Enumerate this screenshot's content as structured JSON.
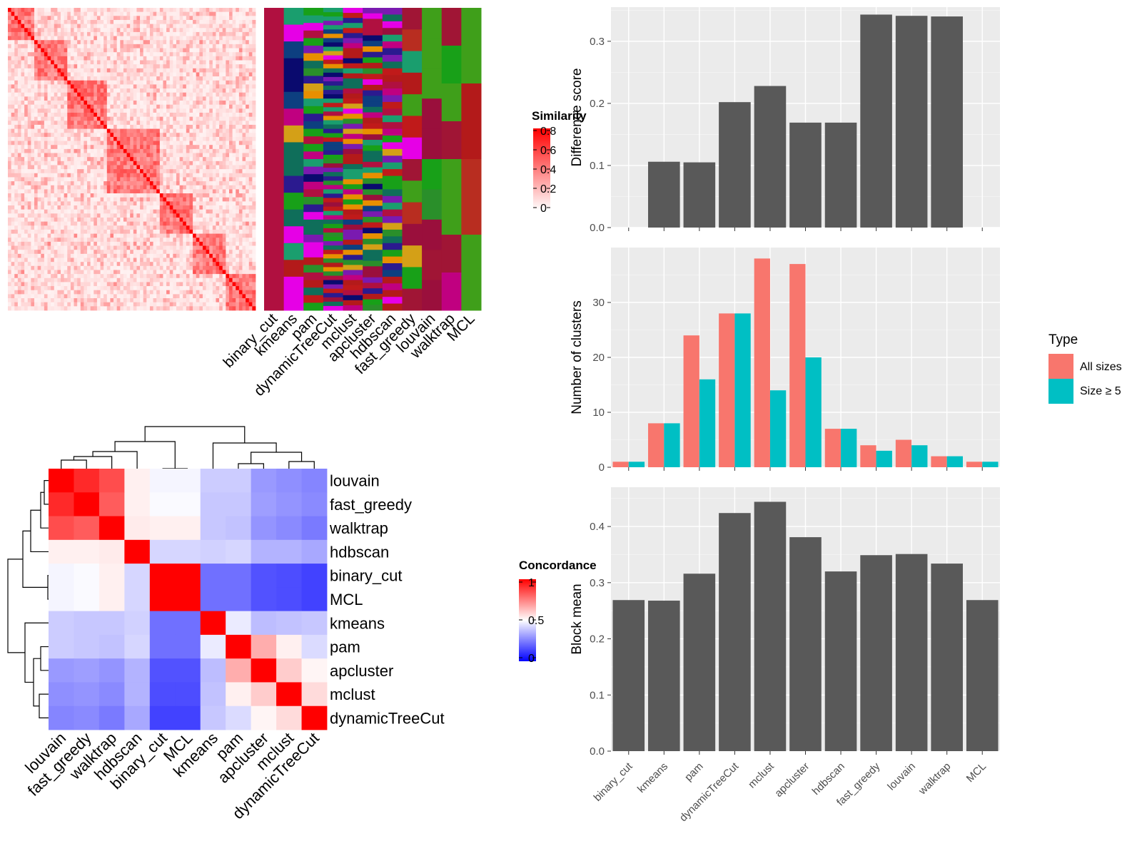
{
  "methods_order": [
    "binary_cut",
    "kmeans",
    "pam",
    "dynamicTreeCut",
    "mclust",
    "apcluster",
    "hdbscan",
    "fast_greedy",
    "louvain",
    "walktrap",
    "MCL"
  ],
  "chart_data": [
    {
      "id": "similarity-heatmap",
      "type": "heatmap",
      "title": "",
      "legend_title": "Similarity",
      "legend_ticks": [
        "0.8",
        "0.6",
        "0.4",
        "0.2",
        "0"
      ],
      "colors": {
        "low": "#ffffff",
        "high": "#ff0000"
      },
      "note": "sorted similarity matrix of terms with method cluster annotation bars",
      "annotation_columns": [
        "binary_cut",
        "kmeans",
        "pam",
        "dynamicTreeCut",
        "mclust",
        "apcluster",
        "hdbscan",
        "fast_greedy",
        "louvain",
        "walktrap",
        "MCL"
      ]
    },
    {
      "id": "concordance-heatmap",
      "type": "heatmap",
      "legend_title": "Concordance",
      "legend_ticks": [
        "1",
        "0.5",
        "0"
      ],
      "colors": {
        "low": "#0000ff",
        "mid": "#ffffff",
        "high": "#ff0000"
      },
      "rows": [
        "louvain",
        "fast_greedy",
        "walktrap",
        "hdbscan",
        "binary_cut",
        "MCL",
        "kmeans",
        "pam",
        "apcluster",
        "mclust",
        "dynamicTreeCut"
      ],
      "columns": [
        "louvain",
        "fast_greedy",
        "walktrap",
        "hdbscan",
        "binary_cut",
        "MCL",
        "kmeans",
        "pam",
        "apcluster",
        "mclust",
        "dynamicTreeCut"
      ],
      "values": [
        [
          1.0,
          0.92,
          0.85,
          0.53,
          0.48,
          0.48,
          0.4,
          0.4,
          0.3,
          0.28,
          0.26
        ],
        [
          0.92,
          1.0,
          0.82,
          0.53,
          0.49,
          0.49,
          0.39,
          0.39,
          0.31,
          0.29,
          0.27
        ],
        [
          0.85,
          0.82,
          1.0,
          0.54,
          0.53,
          0.53,
          0.39,
          0.38,
          0.29,
          0.27,
          0.24
        ],
        [
          0.53,
          0.53,
          0.54,
          1.0,
          0.42,
          0.42,
          0.41,
          0.42,
          0.35,
          0.35,
          0.33
        ],
        [
          0.48,
          0.49,
          0.53,
          0.42,
          1.0,
          1.0,
          0.22,
          0.22,
          0.16,
          0.15,
          0.13
        ],
        [
          0.48,
          0.49,
          0.53,
          0.42,
          1.0,
          1.0,
          0.22,
          0.22,
          0.16,
          0.15,
          0.13
        ],
        [
          0.4,
          0.39,
          0.39,
          0.41,
          0.22,
          0.22,
          1.0,
          0.46,
          0.37,
          0.38,
          0.39
        ],
        [
          0.4,
          0.39,
          0.38,
          0.42,
          0.22,
          0.22,
          0.46,
          1.0,
          0.66,
          0.53,
          0.43
        ],
        [
          0.3,
          0.31,
          0.29,
          0.35,
          0.16,
          0.16,
          0.37,
          0.66,
          1.0,
          0.6,
          0.52
        ],
        [
          0.28,
          0.29,
          0.27,
          0.35,
          0.15,
          0.15,
          0.38,
          0.53,
          0.6,
          1.0,
          0.57
        ],
        [
          0.26,
          0.27,
          0.24,
          0.33,
          0.13,
          0.13,
          0.39,
          0.43,
          0.52,
          0.57,
          1.0
        ]
      ]
    },
    {
      "id": "difference-score",
      "type": "bar",
      "categories": [
        "binary_cut",
        "kmeans",
        "pam",
        "dynamicTreeCut",
        "mclust",
        "apcluster",
        "hdbscan",
        "fast_greedy",
        "louvain",
        "walktrap",
        "MCL"
      ],
      "values": [
        0.0,
        0.106,
        0.105,
        0.202,
        0.228,
        0.169,
        0.169,
        0.343,
        0.341,
        0.34,
        0.0
      ],
      "ylabel": "Difference score",
      "ylim": [
        0,
        0.355
      ],
      "yticks": [
        0.0,
        0.1,
        0.2,
        0.3
      ],
      "show_x_tick_labels": false,
      "color": "#595959",
      "grid": true
    },
    {
      "id": "number-of-clusters",
      "type": "bar",
      "categories": [
        "binary_cut",
        "kmeans",
        "pam",
        "dynamicTreeCut",
        "mclust",
        "apcluster",
        "hdbscan",
        "fast_greedy",
        "louvain",
        "walktrap",
        "MCL"
      ],
      "series": [
        {
          "name": "All sizes",
          "color": "#F8766D",
          "values": [
            1,
            8,
            24,
            28,
            38,
            37,
            7,
            4,
            5,
            2,
            1
          ]
        },
        {
          "name": "Size ≥ 5",
          "color": "#00BFC4",
          "values": [
            1,
            8,
            16,
            28,
            14,
            20,
            7,
            3,
            4,
            2,
            1
          ]
        }
      ],
      "ylabel": "Number of clusters",
      "ylim": [
        0,
        40
      ],
      "yticks": [
        0,
        10,
        20,
        30
      ],
      "legend_title": "Type",
      "legend_position": "right",
      "show_x_tick_labels": false,
      "grid": true
    },
    {
      "id": "block-mean",
      "type": "bar",
      "categories": [
        "binary_cut",
        "kmeans",
        "pam",
        "dynamicTreeCut",
        "mclust",
        "apcluster",
        "hdbscan",
        "fast_greedy",
        "louvain",
        "walktrap",
        "MCL"
      ],
      "values": [
        0.269,
        0.268,
        0.316,
        0.424,
        0.444,
        0.381,
        0.32,
        0.349,
        0.351,
        0.334,
        0.269
      ],
      "ylabel": "Block mean",
      "ylim": [
        0,
        0.47
      ],
      "yticks": [
        0.0,
        0.1,
        0.2,
        0.3,
        0.4
      ],
      "show_x_tick_labels": true,
      "color": "#595959",
      "grid": true
    }
  ]
}
